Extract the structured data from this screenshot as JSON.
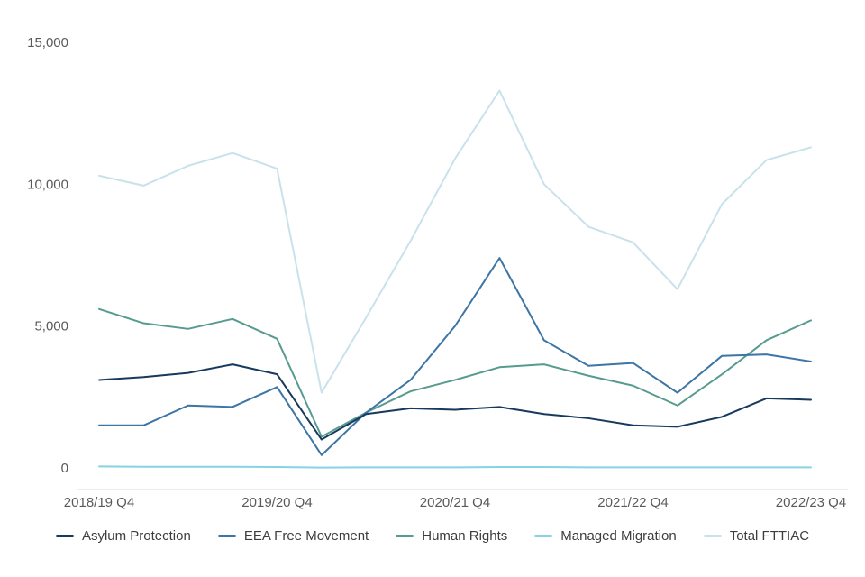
{
  "chart_data": {
    "type": "line",
    "title": "",
    "num_points": 17,
    "x_axis": {
      "tick_positions": [
        0,
        4,
        8,
        12,
        16
      ],
      "tick_labels": [
        "2018/19 Q4",
        "2019/20 Q4",
        "2020/21 Q4",
        "2021/22 Q4",
        "2022/23 Q4"
      ]
    },
    "y_axis": {
      "range": [
        0,
        15000
      ],
      "ticks": [
        0,
        5000,
        10000,
        15000
      ],
      "tick_labels": [
        "0",
        "5,000",
        "10,000",
        "15,000"
      ]
    },
    "grid": false,
    "legend_position": "bottom",
    "series": [
      {
        "name": "Asylum Protection",
        "color": "#16395d",
        "values": [
          3100,
          3200,
          3350,
          3650,
          3300,
          1000,
          1900,
          2100,
          2050,
          2150,
          1900,
          1750,
          1500,
          1450,
          1800,
          2450,
          2400
        ]
      },
      {
        "name": "EEA Free Movement",
        "color": "#3d75a4",
        "values": [
          1500,
          1500,
          2200,
          2150,
          2850,
          450,
          1950,
          3100,
          5000,
          7400,
          4500,
          3600,
          3700,
          2650,
          3950,
          4000,
          3750
        ]
      },
      {
        "name": "Human Rights",
        "color": "#579b90",
        "values": [
          5600,
          5100,
          4900,
          5250,
          4550,
          1100,
          1950,
          2700,
          3100,
          3550,
          3650,
          3250,
          2900,
          2200,
          3300,
          4500,
          5200
        ]
      },
      {
        "name": "Managed Migration",
        "color": "#86d3e3",
        "values": [
          50,
          40,
          40,
          40,
          30,
          10,
          20,
          20,
          20,
          30,
          30,
          20,
          20,
          20,
          20,
          20,
          20
        ]
      },
      {
        "name": "Total FTTIAC",
        "color": "#c8e2ec",
        "values": [
          10300,
          9950,
          10650,
          11100,
          10550,
          2650,
          5300,
          8000,
          10900,
          13300,
          10000,
          8500,
          7950,
          6300,
          9300,
          10850,
          11300
        ]
      }
    ],
    "style": {
      "background": "#ffffff",
      "axis_line_color": "#d9d9d9",
      "tick_text_color": "#595959",
      "legend_text_color": "#3d3d3d",
      "line_width": 2
    }
  }
}
